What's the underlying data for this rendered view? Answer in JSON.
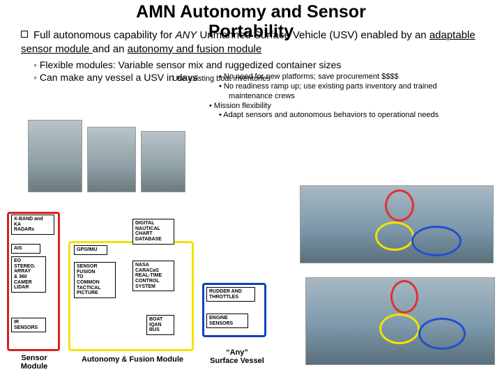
{
  "title_line1": "AMN Autonomy and Sensor",
  "title_line2": "Portability",
  "bullet1_a": "Full autonomous capability for ",
  "bullet1_b": "ANY",
  "bullet1_c": " Unmanned Surface Vehicle (USV) enabled by an ",
  "bullet1_d": "adaptable sensor module ",
  "bullet1_e": "and an ",
  "bullet1_f": "autonomy and fusion module",
  "sub1": "Flexible modules: Variable sensor mix and ruggedized container sizes",
  "sub2_a": "Can make any vessel a USV in days",
  "sub2_b": "Use existing boat inventories",
  "tiny": {
    "t1": "• No need for new platforms; save procurement $$$$",
    "t2": "• No readiness ramp up; use existing parts inventory and trained",
    "t3": "maintenance crews",
    "t4": "• Mission flexibility",
    "t5": "• Adapt sensors and autonomous behaviors to operational needs"
  },
  "boxes": {
    "xband": "X-BAND and\nKA\nRADARs",
    "ais": "AIS",
    "eo": "EO\nSTEREO.\nARRAY\n& 360\nCAMER\nLIDAR",
    "ir": "IR\nSENSORS",
    "gps": "GPS/IMU",
    "fusion": "SENSOR\nFUSION\nTO\nCOMMON\nTACTICAL\nPICTURE",
    "chart": "DIGITAL\nNAUTICAL\nCHART\nDATABASE",
    "caracas": "NASA\nCARACaS\nREAL-TIME\nCONTROL\nSYSTEM",
    "iqan": "BOAT\nIQAN\nBUS",
    "rudder": "RUDDER AND\nTHROTTLES",
    "engine": "ENGINE\nSENSORS"
  },
  "labels": {
    "sensor": "Sensor\nModule",
    "autonomy": "Autonomy & Fusion Module",
    "any": "“Any”\nSurface Vessel"
  }
}
